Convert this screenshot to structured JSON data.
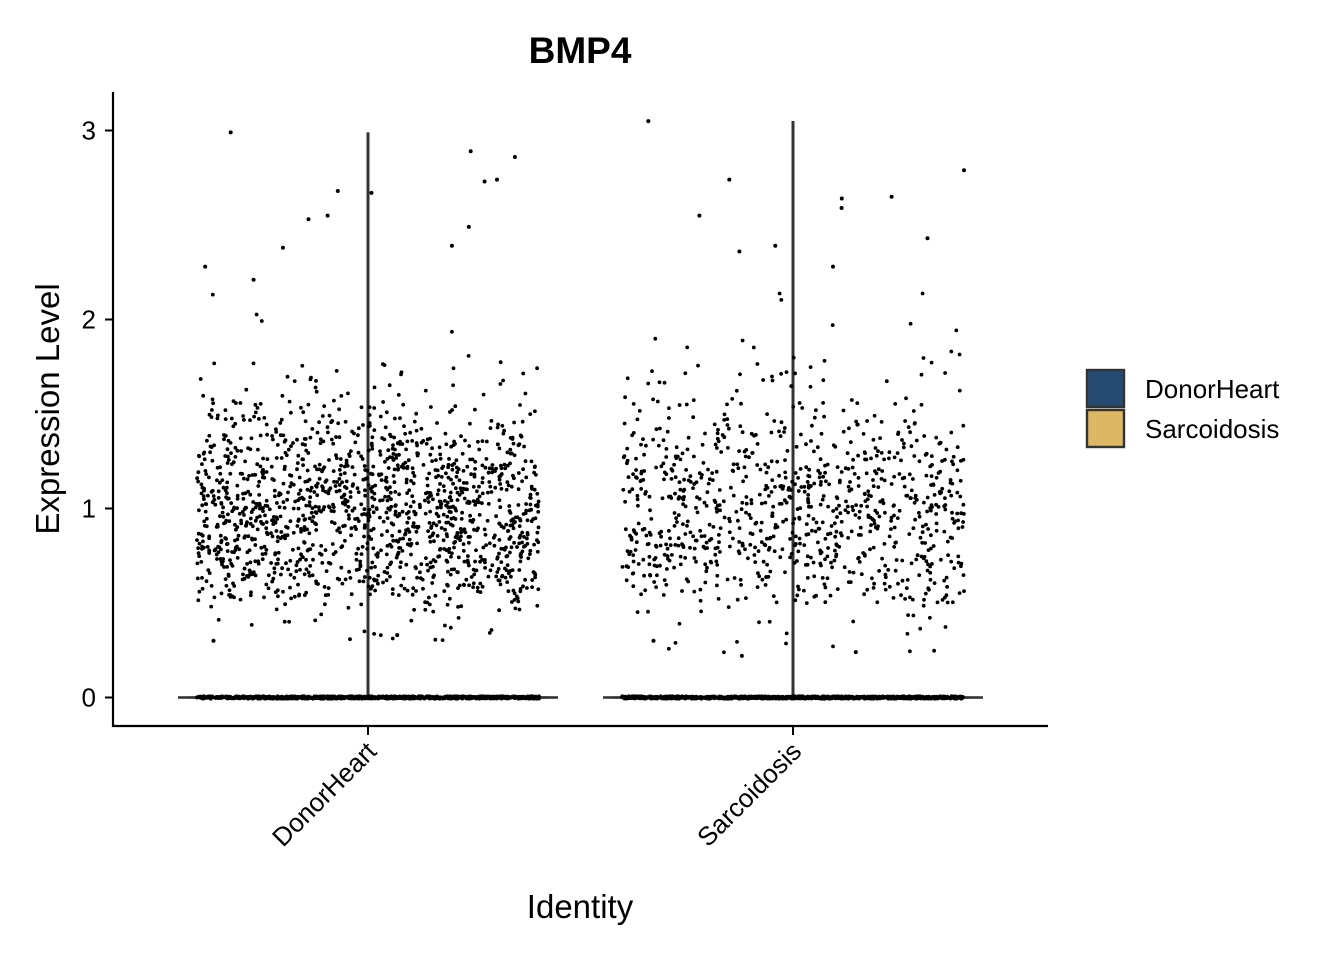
{
  "chart_data": {
    "type": "violin",
    "title": "BMP4",
    "xlabel": "Identity",
    "ylabel": "Expression Level",
    "categories": [
      "DonorHeart",
      "Sarcoidosis"
    ],
    "ylim": [
      -0.15,
      3.2
    ],
    "yticks": [
      0,
      1,
      2,
      3
    ],
    "grid": false,
    "legend": {
      "position": "right",
      "entries": [
        {
          "label": "DonorHeart",
          "color": "#264B73"
        },
        {
          "label": "Sarcoidosis",
          "color": "#DCB865"
        }
      ]
    },
    "series": [
      {
        "name": "DonorHeart",
        "color": "#264B73",
        "violin": {
          "min": 0,
          "max": 2.99
        },
        "points_zero_count": 900,
        "points_nonzero_count": 1500,
        "points_nonzero_mean": 1.0,
        "points_nonzero_sd": 0.33,
        "points_nonzero_range": [
          0.3,
          2.99
        ],
        "highlighted_points": [
          {
            "y": 2.86
          },
          {
            "y": 2.99
          },
          {
            "y": 2.74
          },
          {
            "y": 2.73
          },
          {
            "y": 2.67
          },
          {
            "y": 2.55
          },
          {
            "y": 2.49
          },
          {
            "y": 2.89
          },
          {
            "y": 2.68
          },
          {
            "y": 2.53
          },
          {
            "y": 2.39
          },
          {
            "y": 2.38
          },
          {
            "y": 2.28
          },
          {
            "y": 2.21
          },
          {
            "y": 0.3
          },
          {
            "y": 0.33
          }
        ]
      },
      {
        "name": "Sarcoidosis",
        "color": "#DCB865",
        "violin": {
          "min": 0,
          "max": 3.05
        },
        "points_zero_count": 900,
        "points_nonzero_count": 950,
        "points_nonzero_mean": 1.0,
        "points_nonzero_sd": 0.35,
        "points_nonzero_range": [
          0.22,
          3.05
        ],
        "highlighted_points": [
          {
            "y": 3.05
          },
          {
            "y": 2.79
          },
          {
            "y": 2.74
          },
          {
            "y": 2.65
          },
          {
            "y": 2.64
          },
          {
            "y": 2.59
          },
          {
            "y": 2.55
          },
          {
            "y": 2.43
          },
          {
            "y": 2.39
          },
          {
            "y": 2.36
          },
          {
            "y": 2.28
          },
          {
            "y": 0.22
          },
          {
            "y": 0.24
          },
          {
            "y": 0.3
          }
        ]
      }
    ]
  }
}
